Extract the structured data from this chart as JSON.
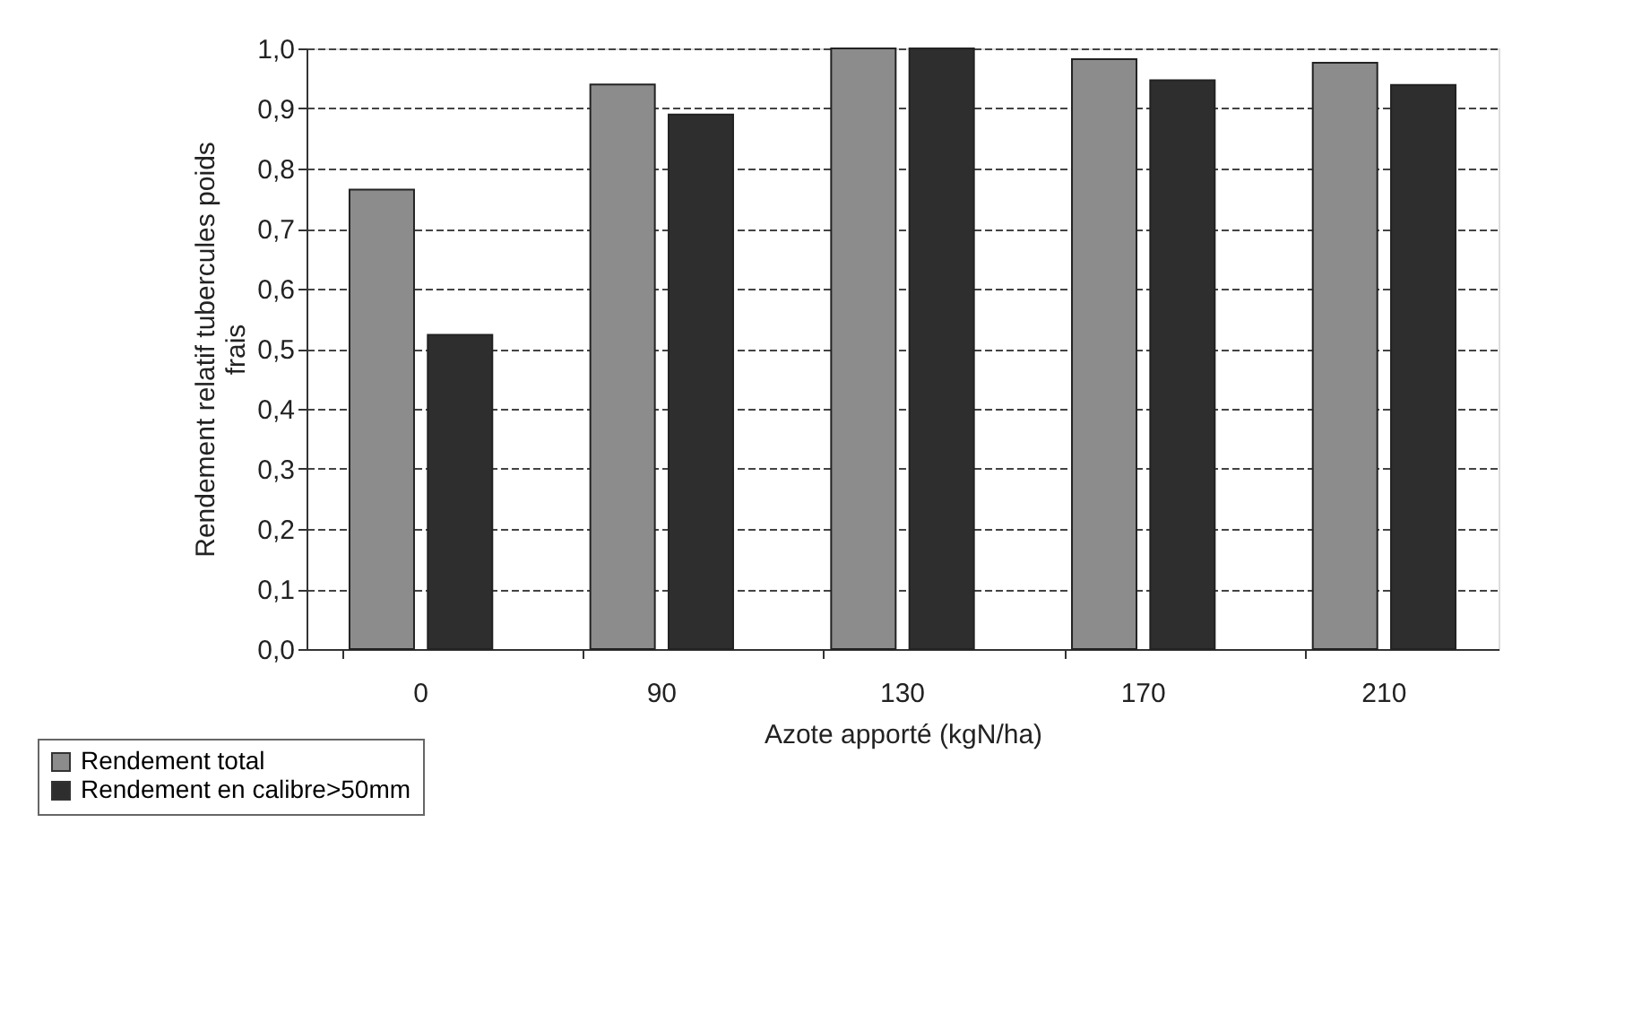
{
  "chart_data": {
    "type": "bar",
    "xlabel": "Azote apporté (kgN/ha)",
    "ylabel": "Rendement relatif tubercules poids frais",
    "categories": [
      "0",
      "90",
      "130",
      "170",
      "210"
    ],
    "series": [
      {
        "name": "Rendement total",
        "color": "#8c8c8c",
        "values": [
          0.765,
          0.94,
          1.0,
          0.982,
          0.976
        ]
      },
      {
        "name": "Rendement en calibre>50mm",
        "color": "#2e2e2e",
        "values": [
          0.523,
          0.89,
          1.0,
          0.947,
          0.939
        ]
      }
    ],
    "ylim": [
      0,
      1
    ],
    "yticks": [
      {
        "value": 0,
        "label": "0,0"
      },
      {
        "value": 0.1,
        "label": "0,1"
      },
      {
        "value": 0.2,
        "label": "0,2"
      },
      {
        "value": 0.3,
        "label": "0,3"
      },
      {
        "value": 0.4,
        "label": "0,4"
      },
      {
        "value": 0.5,
        "label": "0,5"
      },
      {
        "value": 0.6,
        "label": "0,6"
      },
      {
        "value": 0.7,
        "label": "0,7"
      },
      {
        "value": 0.8,
        "label": "0,8"
      },
      {
        "value": 0.9,
        "label": "0,9"
      },
      {
        "value": 1,
        "label": "1,0"
      }
    ],
    "grid": "y",
    "legend": "bottom left"
  }
}
